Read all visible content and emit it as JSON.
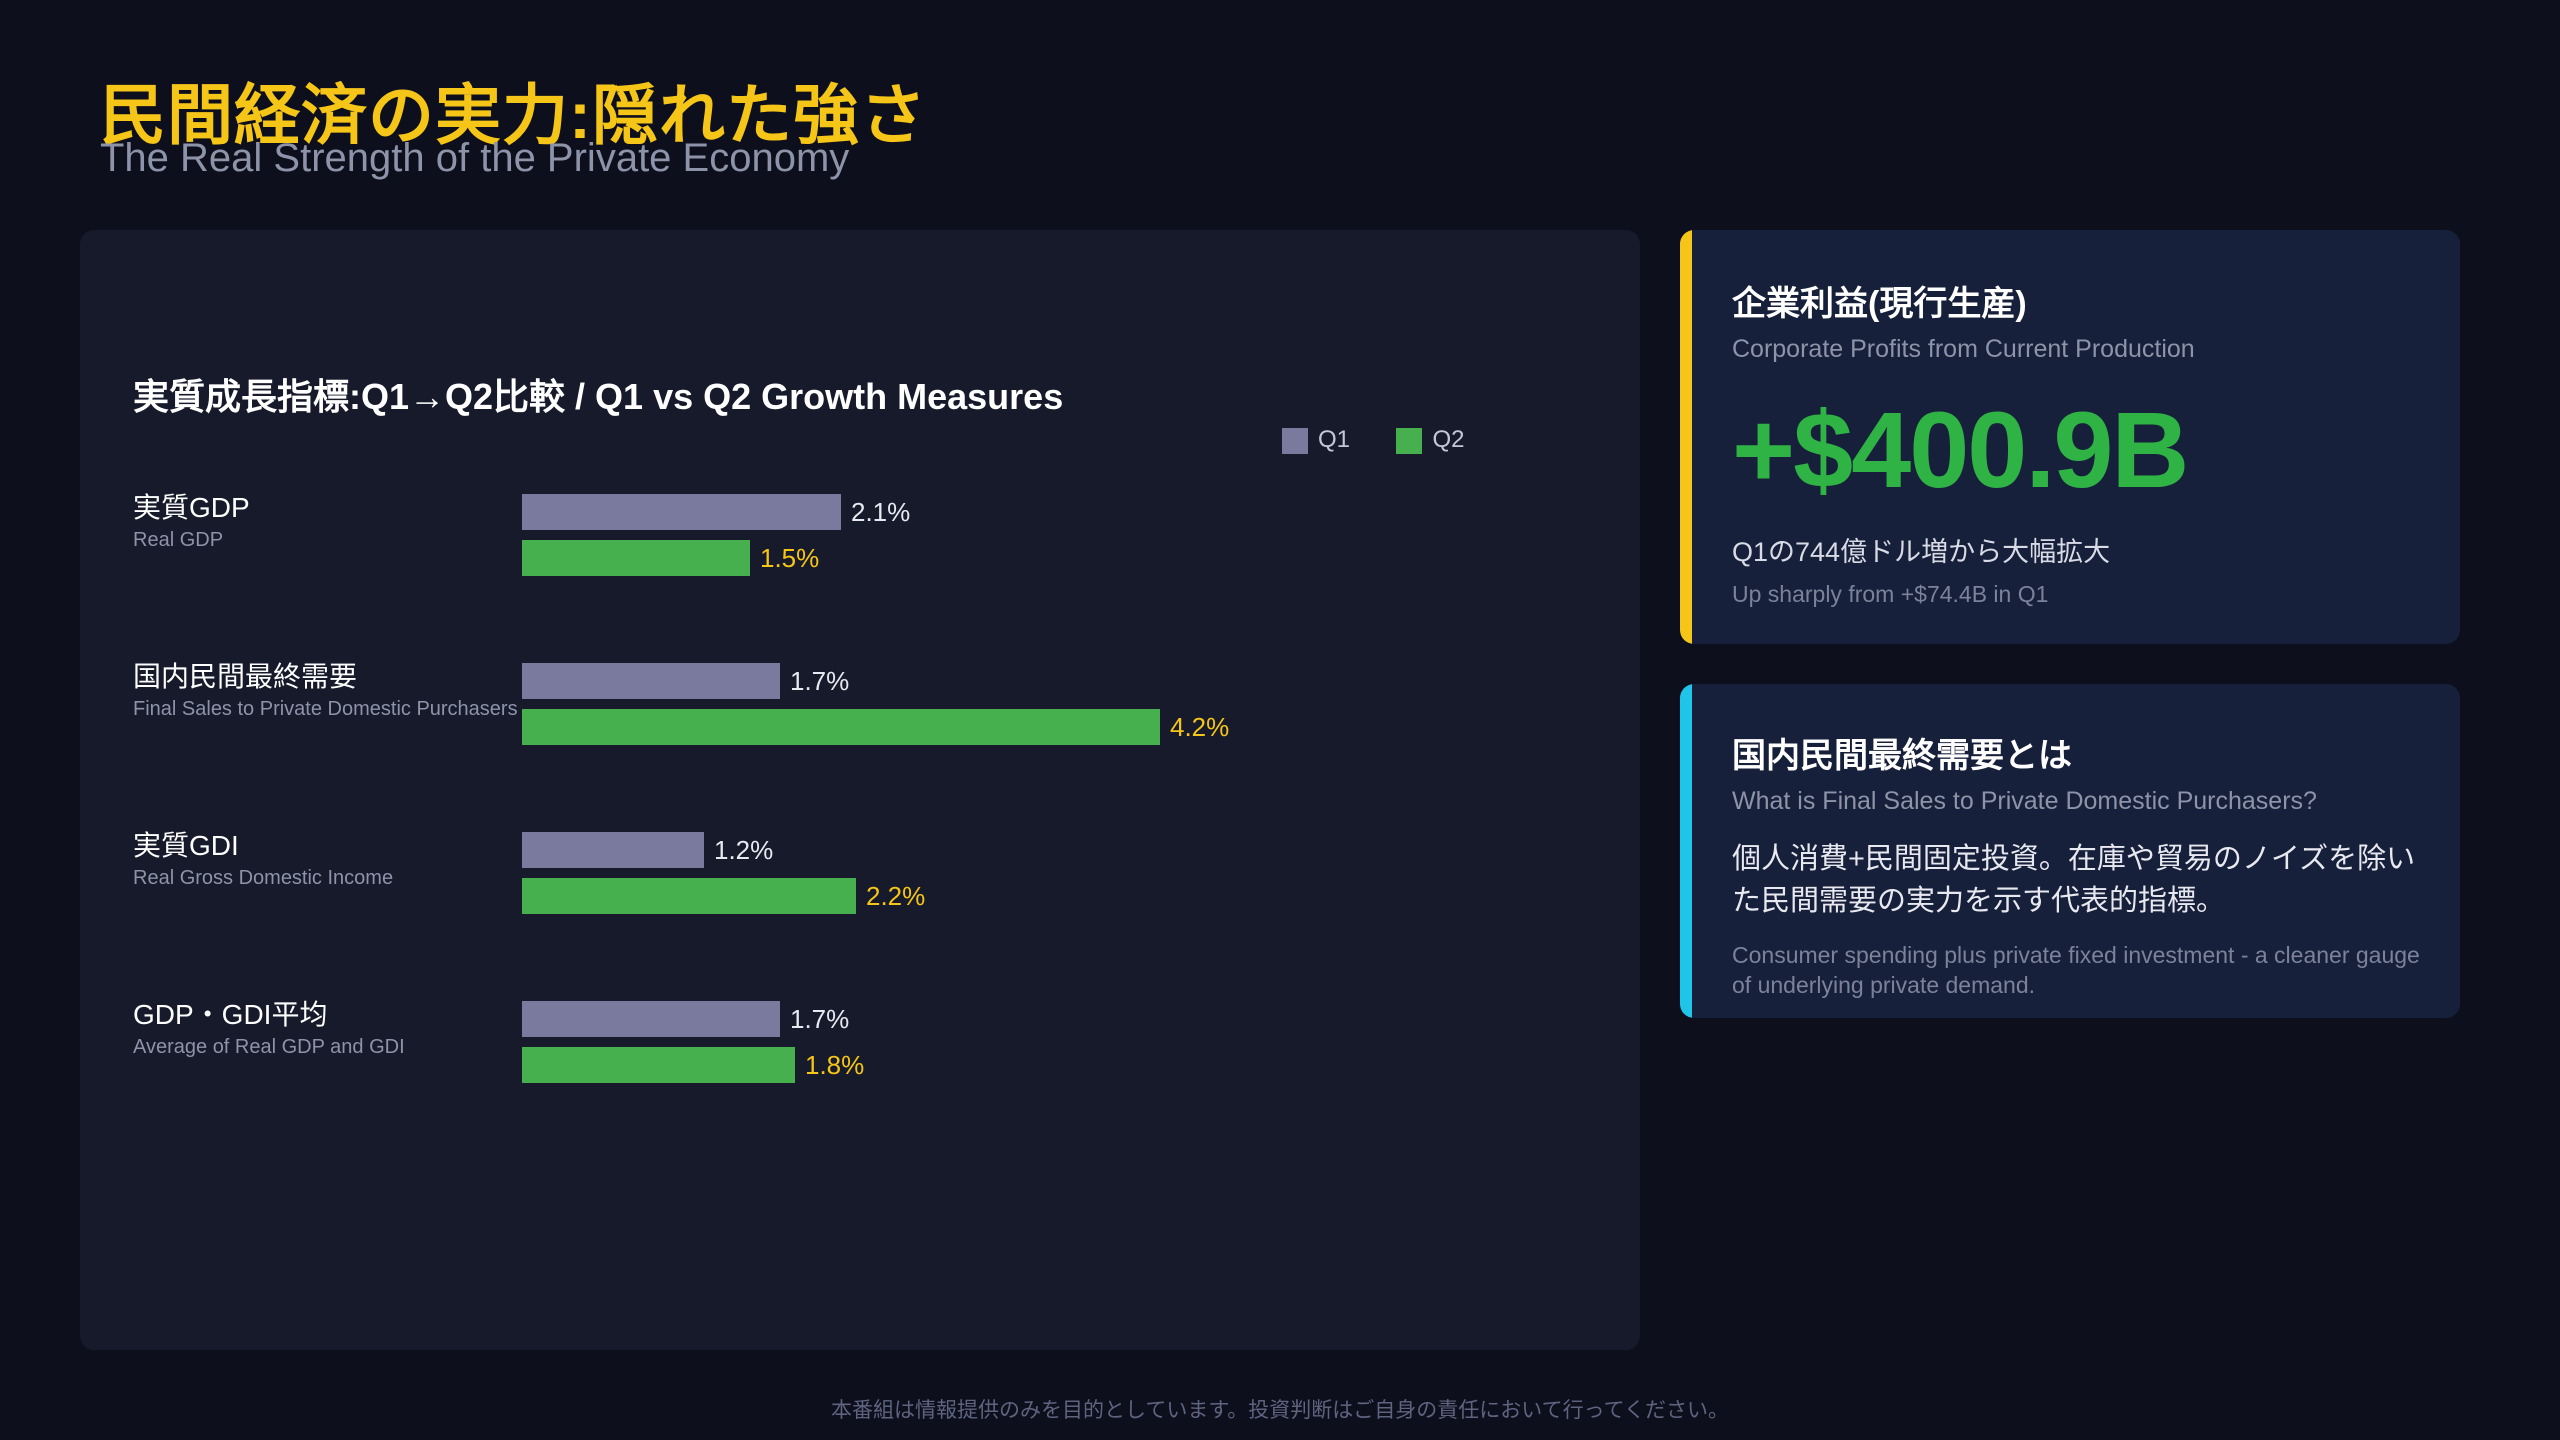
{
  "header": {
    "title_ja": "民間経済の実力:隠れた強さ",
    "title_en": "The Real Strength of the Private Economy"
  },
  "colors": {
    "background": "#0d0f1c",
    "title": "#f5c518",
    "q1_bar": "#7a7a9e",
    "q2_bar": "#46b04e",
    "q2_label": "#f5c518",
    "profits_accent": "#f5c518",
    "info_accent": "#1fc5e8",
    "big_number": "#2fb344"
  },
  "chart_data": {
    "type": "bar",
    "orientation": "horizontal",
    "title": "実質成長指標:Q1→Q2比較 / Q1 vs Q2 Growth Measures",
    "categories": [
      {
        "ja": "実質GDP",
        "en": "Real GDP"
      },
      {
        "ja": "国内民間最終需要",
        "en": "Final Sales to Private Domestic Purchasers"
      },
      {
        "ja": "実質GDI",
        "en": "Real Gross Domestic Income"
      },
      {
        "ja": "GDP・GDI平均",
        "en": "Average of Real GDP and GDI"
      }
    ],
    "series": [
      {
        "name": "Q1",
        "values": [
          2.1,
          1.7,
          1.2,
          1.7
        ],
        "labels": [
          "2.1%",
          "1.7%",
          "1.2%",
          "1.7%"
        ]
      },
      {
        "name": "Q2",
        "values": [
          1.5,
          4.2,
          2.2,
          1.8
        ],
        "labels": [
          "1.5%",
          "4.2%",
          "2.2%",
          "1.8%"
        ]
      }
    ],
    "unit": "%",
    "legend": "top-right",
    "grid": false,
    "xlim": [
      0,
      4.2
    ]
  },
  "profits_card": {
    "title_ja": "企業利益(現行生産)",
    "title_en": "Corporate Profits from Current Production",
    "value": "+$400.9B",
    "note_ja": "Q1の744億ドル増から大幅拡大",
    "note_en": "Up sharply from +$74.4B in Q1"
  },
  "info_card": {
    "title_ja": "国内民間最終需要とは",
    "title_en": "What is Final Sales to Private Domestic Purchasers?",
    "body_ja": "個人消費+民間固定投資。在庫や貿易のノイズを除いた民間需要の実力を示す代表的指標。",
    "body_en": "Consumer spending plus private fixed investment - a cleaner gauge of underlying private demand."
  },
  "footer": {
    "disclaimer": "本番組は情報提供のみを目的としています。投資判断はご自身の責任において行ってください。"
  }
}
